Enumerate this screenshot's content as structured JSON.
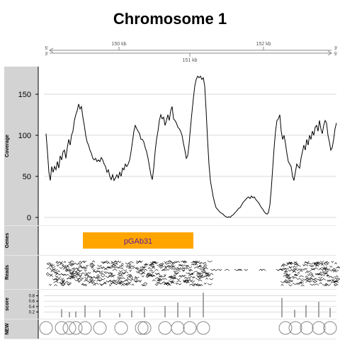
{
  "title": "Chromosome 1",
  "axis": {
    "labels": [
      "150 kb",
      "151 kb",
      "152 kb"
    ],
    "label_positions_kb": [
      150,
      151,
      152
    ],
    "end_marks": [
      "5'",
      "3'"
    ]
  },
  "chart_data": {
    "type": "line",
    "title": "Chromosome 1",
    "tracks": [
      {
        "name": "Coverage",
        "type": "line",
        "ylim": [
          0,
          175
        ],
        "yticks": [
          0,
          50,
          100,
          150
        ],
        "x_range": [
          0,
          410
        ],
        "points": [
          [
            0,
            102
          ],
          [
            2,
            80
          ],
          [
            4,
            55
          ],
          [
            6,
            45
          ],
          [
            8,
            62
          ],
          [
            10,
            55
          ],
          [
            12,
            62
          ],
          [
            14,
            58
          ],
          [
            16,
            68
          ],
          [
            18,
            60
          ],
          [
            20,
            75
          ],
          [
            22,
            70
          ],
          [
            24,
            80
          ],
          [
            26,
            82
          ],
          [
            28,
            72
          ],
          [
            30,
            85
          ],
          [
            32,
            95
          ],
          [
            34,
            88
          ],
          [
            36,
            100
          ],
          [
            38,
            105
          ],
          [
            40,
            118
          ],
          [
            42,
            125
          ],
          [
            44,
            130
          ],
          [
            46,
            138
          ],
          [
            48,
            132
          ],
          [
            50,
            135
          ],
          [
            52,
            122
          ],
          [
            54,
            112
          ],
          [
            56,
            100
          ],
          [
            58,
            92
          ],
          [
            60,
            88
          ],
          [
            62,
            82
          ],
          [
            64,
            78
          ],
          [
            66,
            72
          ],
          [
            68,
            70
          ],
          [
            70,
            72
          ],
          [
            72,
            68
          ],
          [
            74,
            70
          ],
          [
            76,
            68
          ],
          [
            78,
            73
          ],
          [
            80,
            70
          ],
          [
            82,
            65
          ],
          [
            84,
            62
          ],
          [
            86,
            55
          ],
          [
            88,
            58
          ],
          [
            90,
            50
          ],
          [
            92,
            46
          ],
          [
            94,
            52
          ],
          [
            96,
            45
          ],
          [
            98,
            48
          ],
          [
            100,
            52
          ],
          [
            102,
            48
          ],
          [
            104,
            55
          ],
          [
            106,
            50
          ],
          [
            108,
            60
          ],
          [
            110,
            58
          ],
          [
            112,
            65
          ],
          [
            114,
            62
          ],
          [
            116,
            65
          ],
          [
            118,
            70
          ],
          [
            120,
            80
          ],
          [
            122,
            92
          ],
          [
            124,
            105
          ],
          [
            126,
            112
          ],
          [
            128,
            108
          ],
          [
            130,
            105
          ],
          [
            132,
            102
          ],
          [
            134,
            95
          ],
          [
            136,
            95
          ],
          [
            138,
            92
          ],
          [
            140,
            85
          ],
          [
            142,
            80
          ],
          [
            144,
            72
          ],
          [
            146,
            62
          ],
          [
            148,
            52
          ],
          [
            150,
            46
          ],
          [
            152,
            60
          ],
          [
            154,
            80
          ],
          [
            156,
            95
          ],
          [
            158,
            105
          ],
          [
            160,
            118
          ],
          [
            162,
            125
          ],
          [
            164,
            120
          ],
          [
            166,
            122
          ],
          [
            168,
            112
          ],
          [
            170,
            118
          ],
          [
            172,
            125
          ],
          [
            174,
            118
          ],
          [
            176,
            130
          ],
          [
            178,
            135
          ],
          [
            180,
            120
          ],
          [
            182,
            118
          ],
          [
            184,
            115
          ],
          [
            186,
            110
          ],
          [
            188,
            108
          ],
          [
            190,
            105
          ],
          [
            192,
            100
          ],
          [
            194,
            90
          ],
          [
            196,
            82
          ],
          [
            198,
            72
          ],
          [
            200,
            75
          ],
          [
            202,
            90
          ],
          [
            204,
            110
          ],
          [
            206,
            128
          ],
          [
            208,
            145
          ],
          [
            210,
            160
          ],
          [
            212,
            168
          ],
          [
            214,
            172
          ],
          [
            216,
            170
          ],
          [
            218,
            172
          ],
          [
            220,
            168
          ],
          [
            222,
            170
          ],
          [
            224,
            160
          ],
          [
            226,
            130
          ],
          [
            228,
            95
          ],
          [
            230,
            65
          ],
          [
            232,
            45
          ],
          [
            234,
            35
          ],
          [
            236,
            25
          ],
          [
            238,
            18
          ],
          [
            240,
            12
          ],
          [
            242,
            10
          ],
          [
            244,
            8
          ],
          [
            246,
            6
          ],
          [
            248,
            5
          ],
          [
            250,
            4
          ],
          [
            252,
            2
          ],
          [
            254,
            1
          ],
          [
            256,
            0
          ],
          [
            258,
            1
          ],
          [
            260,
            0
          ],
          [
            262,
            2
          ],
          [
            264,
            3
          ],
          [
            266,
            5
          ],
          [
            268,
            7
          ],
          [
            270,
            9
          ],
          [
            272,
            11
          ],
          [
            274,
            12
          ],
          [
            276,
            15
          ],
          [
            278,
            18
          ],
          [
            280,
            20
          ],
          [
            282,
            22
          ],
          [
            284,
            24
          ],
          [
            286,
            25
          ],
          [
            288,
            23
          ],
          [
            290,
            26
          ],
          [
            292,
            24
          ],
          [
            294,
            25
          ],
          [
            296,
            22
          ],
          [
            298,
            20
          ],
          [
            300,
            18
          ],
          [
            302,
            15
          ],
          [
            304,
            12
          ],
          [
            306,
            10
          ],
          [
            308,
            7
          ],
          [
            310,
            5
          ],
          [
            312,
            4
          ],
          [
            314,
            6
          ],
          [
            316,
            15
          ],
          [
            318,
            35
          ],
          [
            320,
            60
          ],
          [
            322,
            85
          ],
          [
            324,
            105
          ],
          [
            326,
            118
          ],
          [
            328,
            120
          ],
          [
            330,
            125
          ],
          [
            332,
            105
          ],
          [
            334,
            95
          ],
          [
            336,
            100
          ],
          [
            338,
            90
          ],
          [
            340,
            78
          ],
          [
            342,
            68
          ],
          [
            344,
            65
          ],
          [
            346,
            62
          ],
          [
            348,
            50
          ],
          [
            350,
            45
          ],
          [
            352,
            55
          ],
          [
            354,
            65
          ],
          [
            356,
            62
          ],
          [
            358,
            60
          ],
          [
            360,
            72
          ],
          [
            362,
            80
          ],
          [
            364,
            88
          ],
          [
            366,
            82
          ],
          [
            368,
            95
          ],
          [
            370,
            88
          ],
          [
            372,
            100
          ],
          [
            374,
            95
          ],
          [
            376,
            105
          ],
          [
            378,
            100
          ],
          [
            380,
            110
          ],
          [
            382,
            112
          ],
          [
            384,
            105
          ],
          [
            386,
            118
          ],
          [
            388,
            108
          ],
          [
            390,
            102
          ],
          [
            392,
            112
          ],
          [
            394,
            118
          ],
          [
            396,
            115
          ],
          [
            398,
            100
          ],
          [
            400,
            92
          ],
          [
            402,
            82
          ],
          [
            404,
            85
          ],
          [
            406,
            95
          ],
          [
            408,
            108
          ],
          [
            410,
            115
          ]
        ]
      },
      {
        "name": "Genes",
        "type": "annotation",
        "features": [
          {
            "label": "pGAb31",
            "start": 52,
            "end": 208,
            "color": "#ffa500",
            "text_color": "#5b1c9c"
          }
        ]
      },
      {
        "name": "Reads",
        "type": "alignment",
        "dense_from": [
          0,
          230
        ],
        "sparse_from": [
          230,
          330
        ],
        "dense_from_2": [
          330,
          410
        ]
      },
      {
        "name": "score",
        "type": "histogram",
        "ylim": [
          0,
          1
        ],
        "yticks": [
          0.2,
          0.4,
          0.6,
          0.8
        ],
        "x": [
          22,
          33,
          42,
          55,
          76,
          104,
          121,
          139,
          168,
          186,
          203,
          222,
          333,
          351,
          367,
          385,
          401
        ],
        "values": [
          0.3,
          0.2,
          0.22,
          0.45,
          0.28,
          0.15,
          0.25,
          0.38,
          0.42,
          0.55,
          0.38,
          0.92,
          0.72,
          0.28,
          0.45,
          0.58,
          0.35
        ]
      },
      {
        "name": "NEW",
        "type": "circles",
        "x": [
          0,
          22,
          33,
          42,
          55,
          76,
          106,
          135,
          139,
          168,
          186,
          203,
          222,
          338,
          352,
          368,
          385,
          401
        ]
      }
    ]
  }
}
